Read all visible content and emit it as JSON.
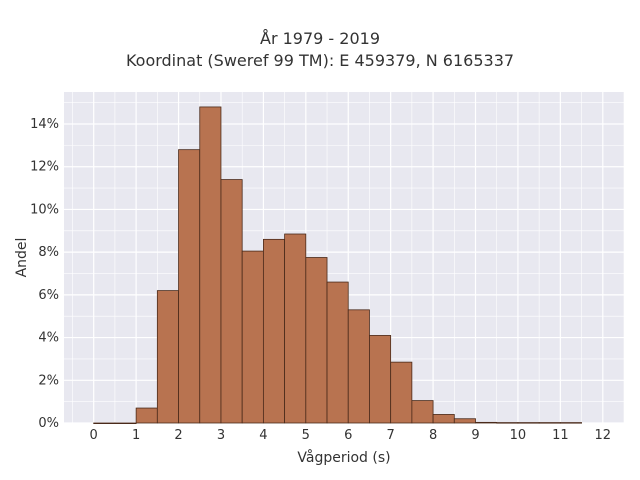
{
  "chart_data": {
    "type": "bar",
    "title": "År 1979 - 2019",
    "subtitle": "Koordinat (Sweref 99 TM): E 459379, N 6165337",
    "xlabel": "Vågperiod (s)",
    "ylabel": "Andel",
    "xlim": [
      -0.7,
      12.5
    ],
    "ylim": [
      0,
      15.5
    ],
    "x_ticks": [
      0,
      1,
      2,
      3,
      4,
      5,
      6,
      7,
      8,
      9,
      10,
      11,
      12
    ],
    "y_ticks": [
      0,
      2,
      4,
      6,
      8,
      10,
      12,
      14
    ],
    "y_tick_format": "percent",
    "bin_width": 0.5,
    "bins": [
      {
        "x0": 0.0,
        "x1": 0.5,
        "value": 0.0
      },
      {
        "x0": 0.5,
        "x1": 1.0,
        "value": 0.0
      },
      {
        "x0": 1.0,
        "x1": 1.5,
        "value": 0.7
      },
      {
        "x0": 1.5,
        "x1": 2.0,
        "value": 6.2
      },
      {
        "x0": 2.0,
        "x1": 2.5,
        "value": 12.8
      },
      {
        "x0": 2.5,
        "x1": 3.0,
        "value": 14.8
      },
      {
        "x0": 3.0,
        "x1": 3.5,
        "value": 11.4
      },
      {
        "x0": 3.5,
        "x1": 4.0,
        "value": 8.05
      },
      {
        "x0": 4.0,
        "x1": 4.5,
        "value": 8.6
      },
      {
        "x0": 4.5,
        "x1": 5.0,
        "value": 8.85
      },
      {
        "x0": 5.0,
        "x1": 5.5,
        "value": 7.75
      },
      {
        "x0": 5.5,
        "x1": 6.0,
        "value": 6.6
      },
      {
        "x0": 6.0,
        "x1": 6.5,
        "value": 5.3
      },
      {
        "x0": 6.5,
        "x1": 7.0,
        "value": 4.1
      },
      {
        "x0": 7.0,
        "x1": 7.5,
        "value": 2.85
      },
      {
        "x0": 7.5,
        "x1": 8.0,
        "value": 1.05
      },
      {
        "x0": 8.0,
        "x1": 8.5,
        "value": 0.4
      },
      {
        "x0": 8.5,
        "x1": 9.0,
        "value": 0.2
      },
      {
        "x0": 9.0,
        "x1": 9.5,
        "value": 0.03
      },
      {
        "x0": 9.5,
        "x1": 10.0,
        "value": 0.02
      },
      {
        "x0": 10.0,
        "x1": 10.5,
        "value": 0.02
      },
      {
        "x0": 10.5,
        "x1": 11.0,
        "value": 0.02
      },
      {
        "x0": 11.0,
        "x1": 11.5,
        "value": 0.02
      }
    ],
    "grid": true,
    "colors": {
      "bar_fill": "#b87350",
      "bar_stroke": "#4a2a1a",
      "plot_bg": "#e8e8f0",
      "grid": "#ffffff"
    }
  }
}
